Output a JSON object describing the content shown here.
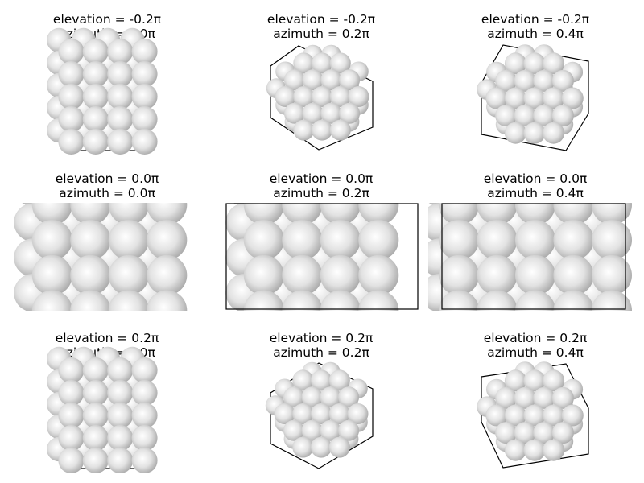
{
  "figure": {
    "panels": [
      {
        "elevation_label": "elevation = -0.2π",
        "azimuth_label": "azimuth = 0.0π",
        "elevation": -0.2,
        "azimuth": 0.0
      },
      {
        "elevation_label": "elevation = -0.2π",
        "azimuth_label": "azimuth = 0.2π",
        "elevation": -0.2,
        "azimuth": 0.2
      },
      {
        "elevation_label": "elevation = -0.2π",
        "azimuth_label": "azimuth = 0.4π",
        "elevation": -0.2,
        "azimuth": 0.4
      },
      {
        "elevation_label": "elevation = 0.0π",
        "azimuth_label": "azimuth = 0.0π",
        "elevation": 0.0,
        "azimuth": 0.0
      },
      {
        "elevation_label": "elevation = 0.0π",
        "azimuth_label": "azimuth = 0.2π",
        "elevation": 0.0,
        "azimuth": 0.2
      },
      {
        "elevation_label": "elevation = 0.0π",
        "azimuth_label": "azimuth = 0.4π",
        "elevation": 0.0,
        "azimuth": 0.4
      },
      {
        "elevation_label": "elevation = 0.2π",
        "azimuth_label": "azimuth = 0.0π",
        "elevation": 0.2,
        "azimuth": 0.0
      },
      {
        "elevation_label": "elevation = 0.2π",
        "azimuth_label": "azimuth = 0.2π",
        "elevation": 0.2,
        "azimuth": 0.2
      },
      {
        "elevation_label": "elevation = 0.2π",
        "azimuth_label": "azimuth = 0.4π",
        "elevation": 0.2,
        "azimuth": 0.4
      }
    ],
    "colors": {
      "sphere_highlight": "#ffffff",
      "sphere_mid": "#e2e2e2",
      "sphere_edge": "#a8a8a8",
      "frame": "#000000"
    }
  }
}
